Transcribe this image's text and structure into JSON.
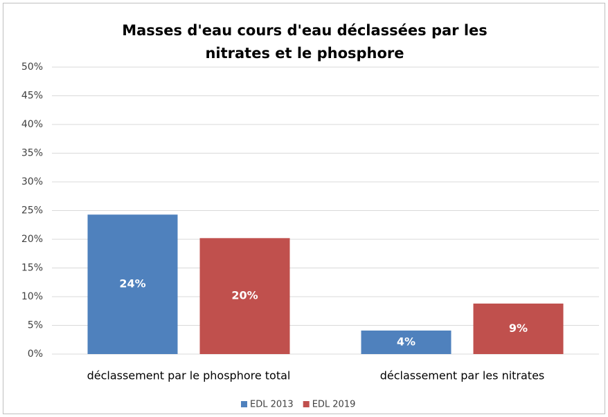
{
  "chart_data": {
    "type": "bar",
    "title": "Masses d'eau cours d'eau déclassées par les nitrates et le phosphore",
    "categories": [
      "déclassement par le phosphore total",
      "déclassement par les nitrates"
    ],
    "series": [
      {
        "name": "EDL 2013",
        "color": "#4f81bd",
        "values": [
          24.3,
          4.1
        ],
        "value_labels": [
          "24%",
          "4%"
        ]
      },
      {
        "name": "EDL 2019",
        "color": "#c0504d",
        "values": [
          20.2,
          8.8
        ],
        "value_labels": [
          "20%",
          "9%"
        ]
      }
    ],
    "ylim": [
      0,
      50
    ],
    "yticks": [
      {
        "value": 0,
        "label": "0%"
      },
      {
        "value": 5,
        "label": "5%"
      },
      {
        "value": 10,
        "label": "10%"
      },
      {
        "value": 15,
        "label": "15%"
      },
      {
        "value": 20,
        "label": "20%"
      },
      {
        "value": 25,
        "label": "25%"
      },
      {
        "value": 30,
        "label": "30%"
      },
      {
        "value": 35,
        "label": "35%"
      },
      {
        "value": 40,
        "label": "40%"
      },
      {
        "value": 45,
        "label": "45%"
      },
      {
        "value": 50,
        "label": "50%"
      }
    ],
    "grid": true,
    "legend": "bottom"
  }
}
